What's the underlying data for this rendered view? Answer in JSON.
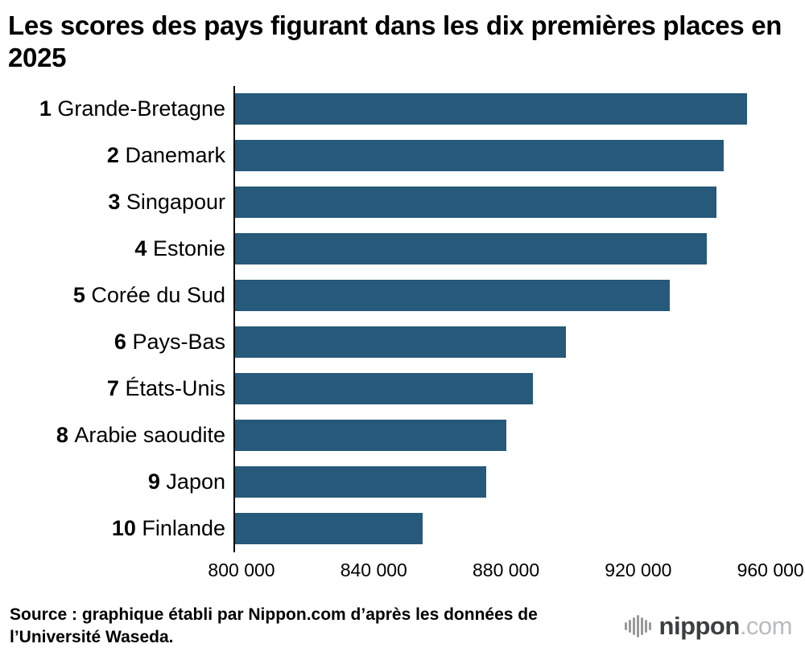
{
  "title": "Les scores des pays figurant dans les dix premières places en 2025",
  "chart_data": {
    "type": "bar",
    "orientation": "horizontal",
    "title": "Les scores des pays figurant dans les dix premières places en 2025",
    "ranks": [
      "1",
      "2",
      "3",
      "4",
      "5",
      "6",
      "7",
      "8",
      "9",
      "10"
    ],
    "categories": [
      "Grande-Bretagne",
      "Danemark",
      "Singapour",
      "Estonie",
      "Corée du Sud",
      "Pays-Bas",
      "États-Unis",
      "Arabie saoudite",
      "Japon",
      "Finlande"
    ],
    "values": [
      953000,
      946000,
      944000,
      941000,
      930000,
      899000,
      889000,
      881000,
      875000,
      856000
    ],
    "xlim": [
      800000,
      968000
    ],
    "xticks": [
      800000,
      840000,
      880000,
      920000,
      960000
    ],
    "xtick_labels": [
      "800 000",
      "840 000",
      "880 000",
      "920 000",
      "960 000"
    ],
    "bar_color": "#26597a",
    "axis_line_color": "#000000",
    "grid": false,
    "legend": false
  },
  "source": {
    "text": "Source : graphique établi par Nippon.com d’après les données de l’Université Waseda."
  },
  "logo": {
    "brand": "nippon",
    "tld": ".com"
  }
}
